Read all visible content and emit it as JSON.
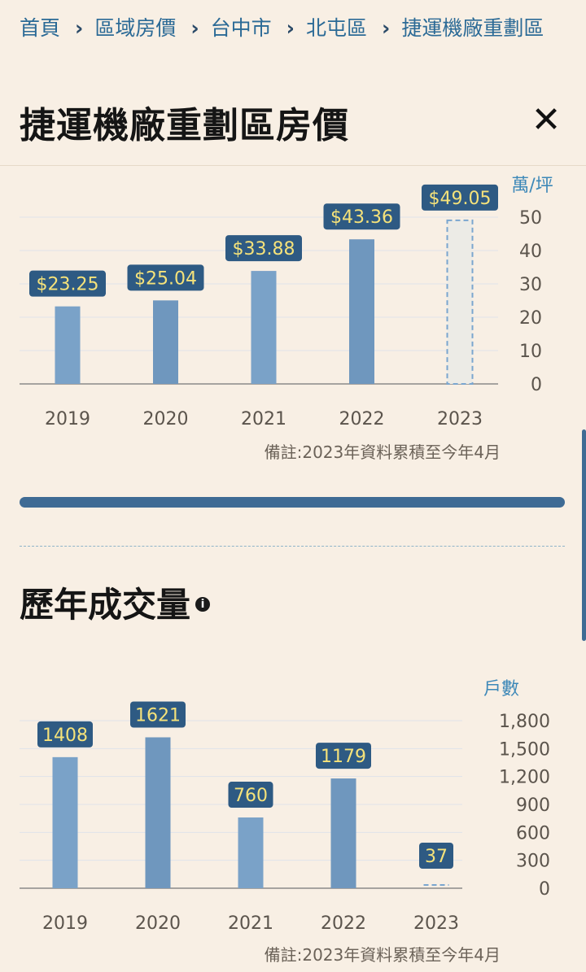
{
  "breadcrumb": {
    "home": "首頁",
    "region_price": "區域房價",
    "city": "台中市",
    "district": "北屯區",
    "zone": "捷運機廠重劃區"
  },
  "page_title": "捷運機廠重劃區房價",
  "price_section": {
    "note": "備註:2023年資料累積至今年4月"
  },
  "volume_section": {
    "title": "歷年成交量",
    "note": "備註:2023年資料累積至今年4月"
  },
  "colors": {
    "bar": "#7aa2c8",
    "bar_dark": "#6f97be",
    "label_bg": "#2e5a83",
    "label_text": "#f5e27a",
    "axis_text": "#5b544c",
    "unit_text": "#3d88b8"
  },
  "chart_data": [
    {
      "type": "bar",
      "categories": [
        "2019",
        "2020",
        "2021",
        "2022",
        "2023"
      ],
      "values": [
        23.25,
        25.04,
        33.88,
        43.36,
        49.05
      ],
      "labels": [
        "$23.25",
        "$25.04",
        "$33.88",
        "$43.36",
        "$49.05"
      ],
      "projected": [
        false,
        false,
        false,
        false,
        true
      ],
      "ylabel": "萬/坪",
      "ylim": [
        0,
        50
      ],
      "yticks": [
        "0",
        "10",
        "20",
        "30",
        "40",
        "50"
      ],
      "grid": true
    },
    {
      "type": "bar",
      "categories": [
        "2019",
        "2020",
        "2021",
        "2022",
        "2023"
      ],
      "values": [
        1408,
        1621,
        760,
        1179,
        37
      ],
      "labels": [
        "1408",
        "1621",
        "760",
        "1179",
        "37"
      ],
      "projected": [
        false,
        false,
        false,
        false,
        true
      ],
      "ylabel": "戶數",
      "ylim": [
        0,
        1800
      ],
      "yticks": [
        "0",
        "300",
        "600",
        "900",
        "1,200",
        "1,500",
        "1,800"
      ],
      "grid": true
    }
  ]
}
